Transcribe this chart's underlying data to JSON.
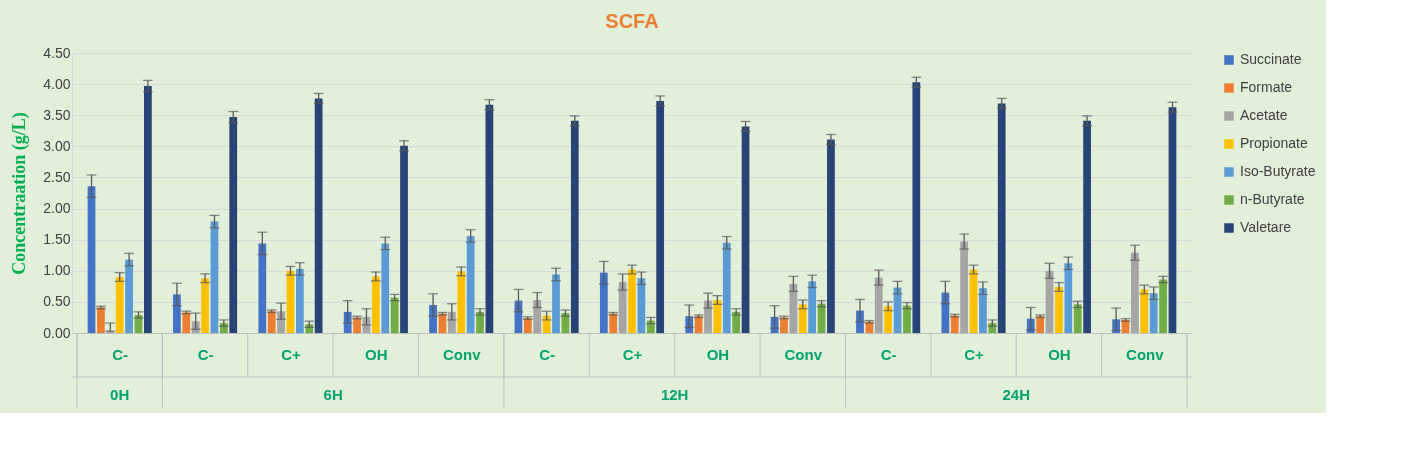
{
  "chart_data": {
    "type": "bar",
    "title": "SCFA",
    "ylabel": "Concentraation  (g/L)",
    "categories": [
      "C-",
      "C-",
      "C+",
      "OH",
      "Conv",
      "C-",
      "C+",
      "OH",
      "Conv",
      "C-",
      "C+",
      "OH",
      "Conv"
    ],
    "annotations": [
      "0H",
      "6H",
      "12H",
      "24H"
    ],
    "series": [
      {
        "name": "Succinate",
        "color": "#4472c4",
        "values": [
          2.36,
          0.62,
          1.44,
          0.34,
          0.45,
          0.52,
          0.97,
          0.27,
          0.26,
          0.36,
          0.65,
          0.23,
          0.22
        ],
        "errors": [
          0.18,
          0.18,
          0.18,
          0.18,
          0.18,
          0.18,
          0.18,
          0.18,
          0.18,
          0.18,
          0.18,
          0.18,
          0.18
        ]
      },
      {
        "name": "Formate",
        "color": "#ed7d31",
        "values": [
          0.41,
          0.33,
          0.35,
          0.25,
          0.31,
          0.24,
          0.31,
          0.27,
          0.25,
          0.18,
          0.28,
          0.27,
          0.21
        ],
        "errors": [
          0.02,
          0.02,
          0.02,
          0.02,
          0.02,
          0.02,
          0.02,
          0.02,
          0.02,
          0.02,
          0.02,
          0.02,
          0.02
        ]
      },
      {
        "name": "Acetate",
        "color": "#a5a5a5",
        "values": [
          0.03,
          0.19,
          0.35,
          0.26,
          0.34,
          0.53,
          0.82,
          0.52,
          0.79,
          0.89,
          1.47,
          1.0,
          1.29
        ],
        "errors": [
          [
            0.03,
            0.16
          ],
          0.13,
          0.13,
          0.13,
          0.13,
          0.12,
          0.13,
          0.12,
          0.12,
          0.12,
          0.12,
          0.12,
          0.12
        ]
      },
      {
        "name": "Propionate",
        "color": "#ffc000",
        "values": [
          0.9,
          0.88,
          1.0,
          0.91,
          0.99,
          0.28,
          1.02,
          0.53,
          0.46,
          0.43,
          1.02,
          0.74,
          0.7
        ],
        "errors": [
          0.07,
          0.07,
          0.07,
          0.07,
          0.07,
          0.07,
          0.07,
          0.07,
          0.07,
          0.07,
          0.07,
          0.07,
          0.07
        ]
      },
      {
        "name": "Iso-Butyrate",
        "color": "#5b9bd5",
        "values": [
          1.18,
          1.79,
          1.03,
          1.44,
          1.56,
          0.94,
          0.88,
          1.45,
          0.83,
          0.73,
          0.72,
          1.12,
          0.64
        ],
        "errors": [
          0.1,
          0.1,
          0.1,
          0.1,
          0.1,
          0.1,
          0.1,
          0.1,
          0.1,
          0.1,
          0.1,
          0.1,
          0.1
        ]
      },
      {
        "name": "n-Butyrate",
        "color": "#70ad47",
        "values": [
          0.29,
          0.16,
          0.14,
          0.57,
          0.34,
          0.32,
          0.2,
          0.34,
          0.47,
          0.44,
          0.16,
          0.46,
          0.86
        ],
        "errors": [
          0.05,
          0.05,
          0.05,
          0.05,
          0.05,
          0.05,
          0.05,
          0.05,
          0.05,
          0.05,
          0.05,
          0.05,
          0.05
        ]
      },
      {
        "name": "Valetare",
        "color": "#264478",
        "values": [
          3.97,
          3.47,
          3.77,
          3.01,
          3.67,
          3.41,
          3.73,
          3.32,
          3.11,
          4.03,
          3.69,
          3.41,
          3.63
        ],
        "errors": [
          0.09,
          0.09,
          0.08,
          0.08,
          0.08,
          0.08,
          0.08,
          0.08,
          0.08,
          0.08,
          0.08,
          0.08,
          0.08
        ]
      }
    ],
    "ylim": [
      0,
      4.5
    ],
    "yticks": [
      {
        "value": 0,
        "label": "0.00"
      },
      {
        "value": 0.5,
        "label": "0.50"
      },
      {
        "value": 1,
        "label": "1.00"
      },
      {
        "value": 1.5,
        "label": "1.50"
      },
      {
        "value": 2,
        "label": "2.00"
      },
      {
        "value": 2.5,
        "label": "2.50"
      },
      {
        "value": 3,
        "label": "3.00"
      },
      {
        "value": 3.5,
        "label": "3.50"
      },
      {
        "value": 4,
        "label": "4.00"
      },
      {
        "value": 4.5,
        "label": "4.50"
      }
    ],
    "grid": "y",
    "legend": "right"
  }
}
